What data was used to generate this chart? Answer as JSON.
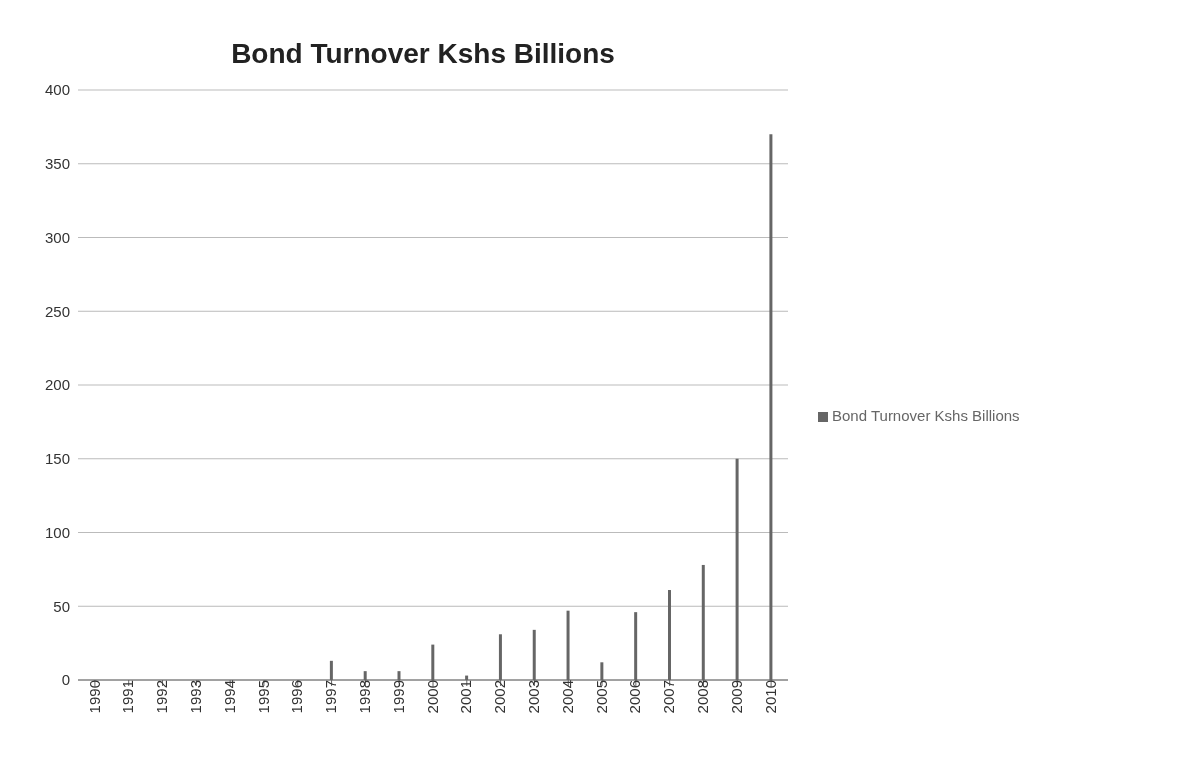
{
  "chart_data": {
    "type": "bar",
    "title": "Bond Turnover Kshs Billions",
    "categories": [
      "1990",
      "1991",
      "1992",
      "1993",
      "1994",
      "1995",
      "1996",
      "1997",
      "1998",
      "1999",
      "2000",
      "2001",
      "2002",
      "2003",
      "2004",
      "2005",
      "2006",
      "2007",
      "2008",
      "2009",
      "2010"
    ],
    "series": [
      {
        "name": "Bond Turnover Kshs Billions",
        "color": "#666666",
        "values": [
          0,
          0,
          0,
          0,
          0,
          0,
          0,
          13,
          6,
          6,
          24,
          3,
          31,
          34,
          47,
          12,
          46,
          61,
          78,
          150,
          370
        ]
      }
    ],
    "ylim": [
      0,
      400
    ],
    "yticks": [
      0,
      50,
      100,
      150,
      200,
      250,
      300,
      350,
      400
    ],
    "grid": "y",
    "legend": "right"
  }
}
